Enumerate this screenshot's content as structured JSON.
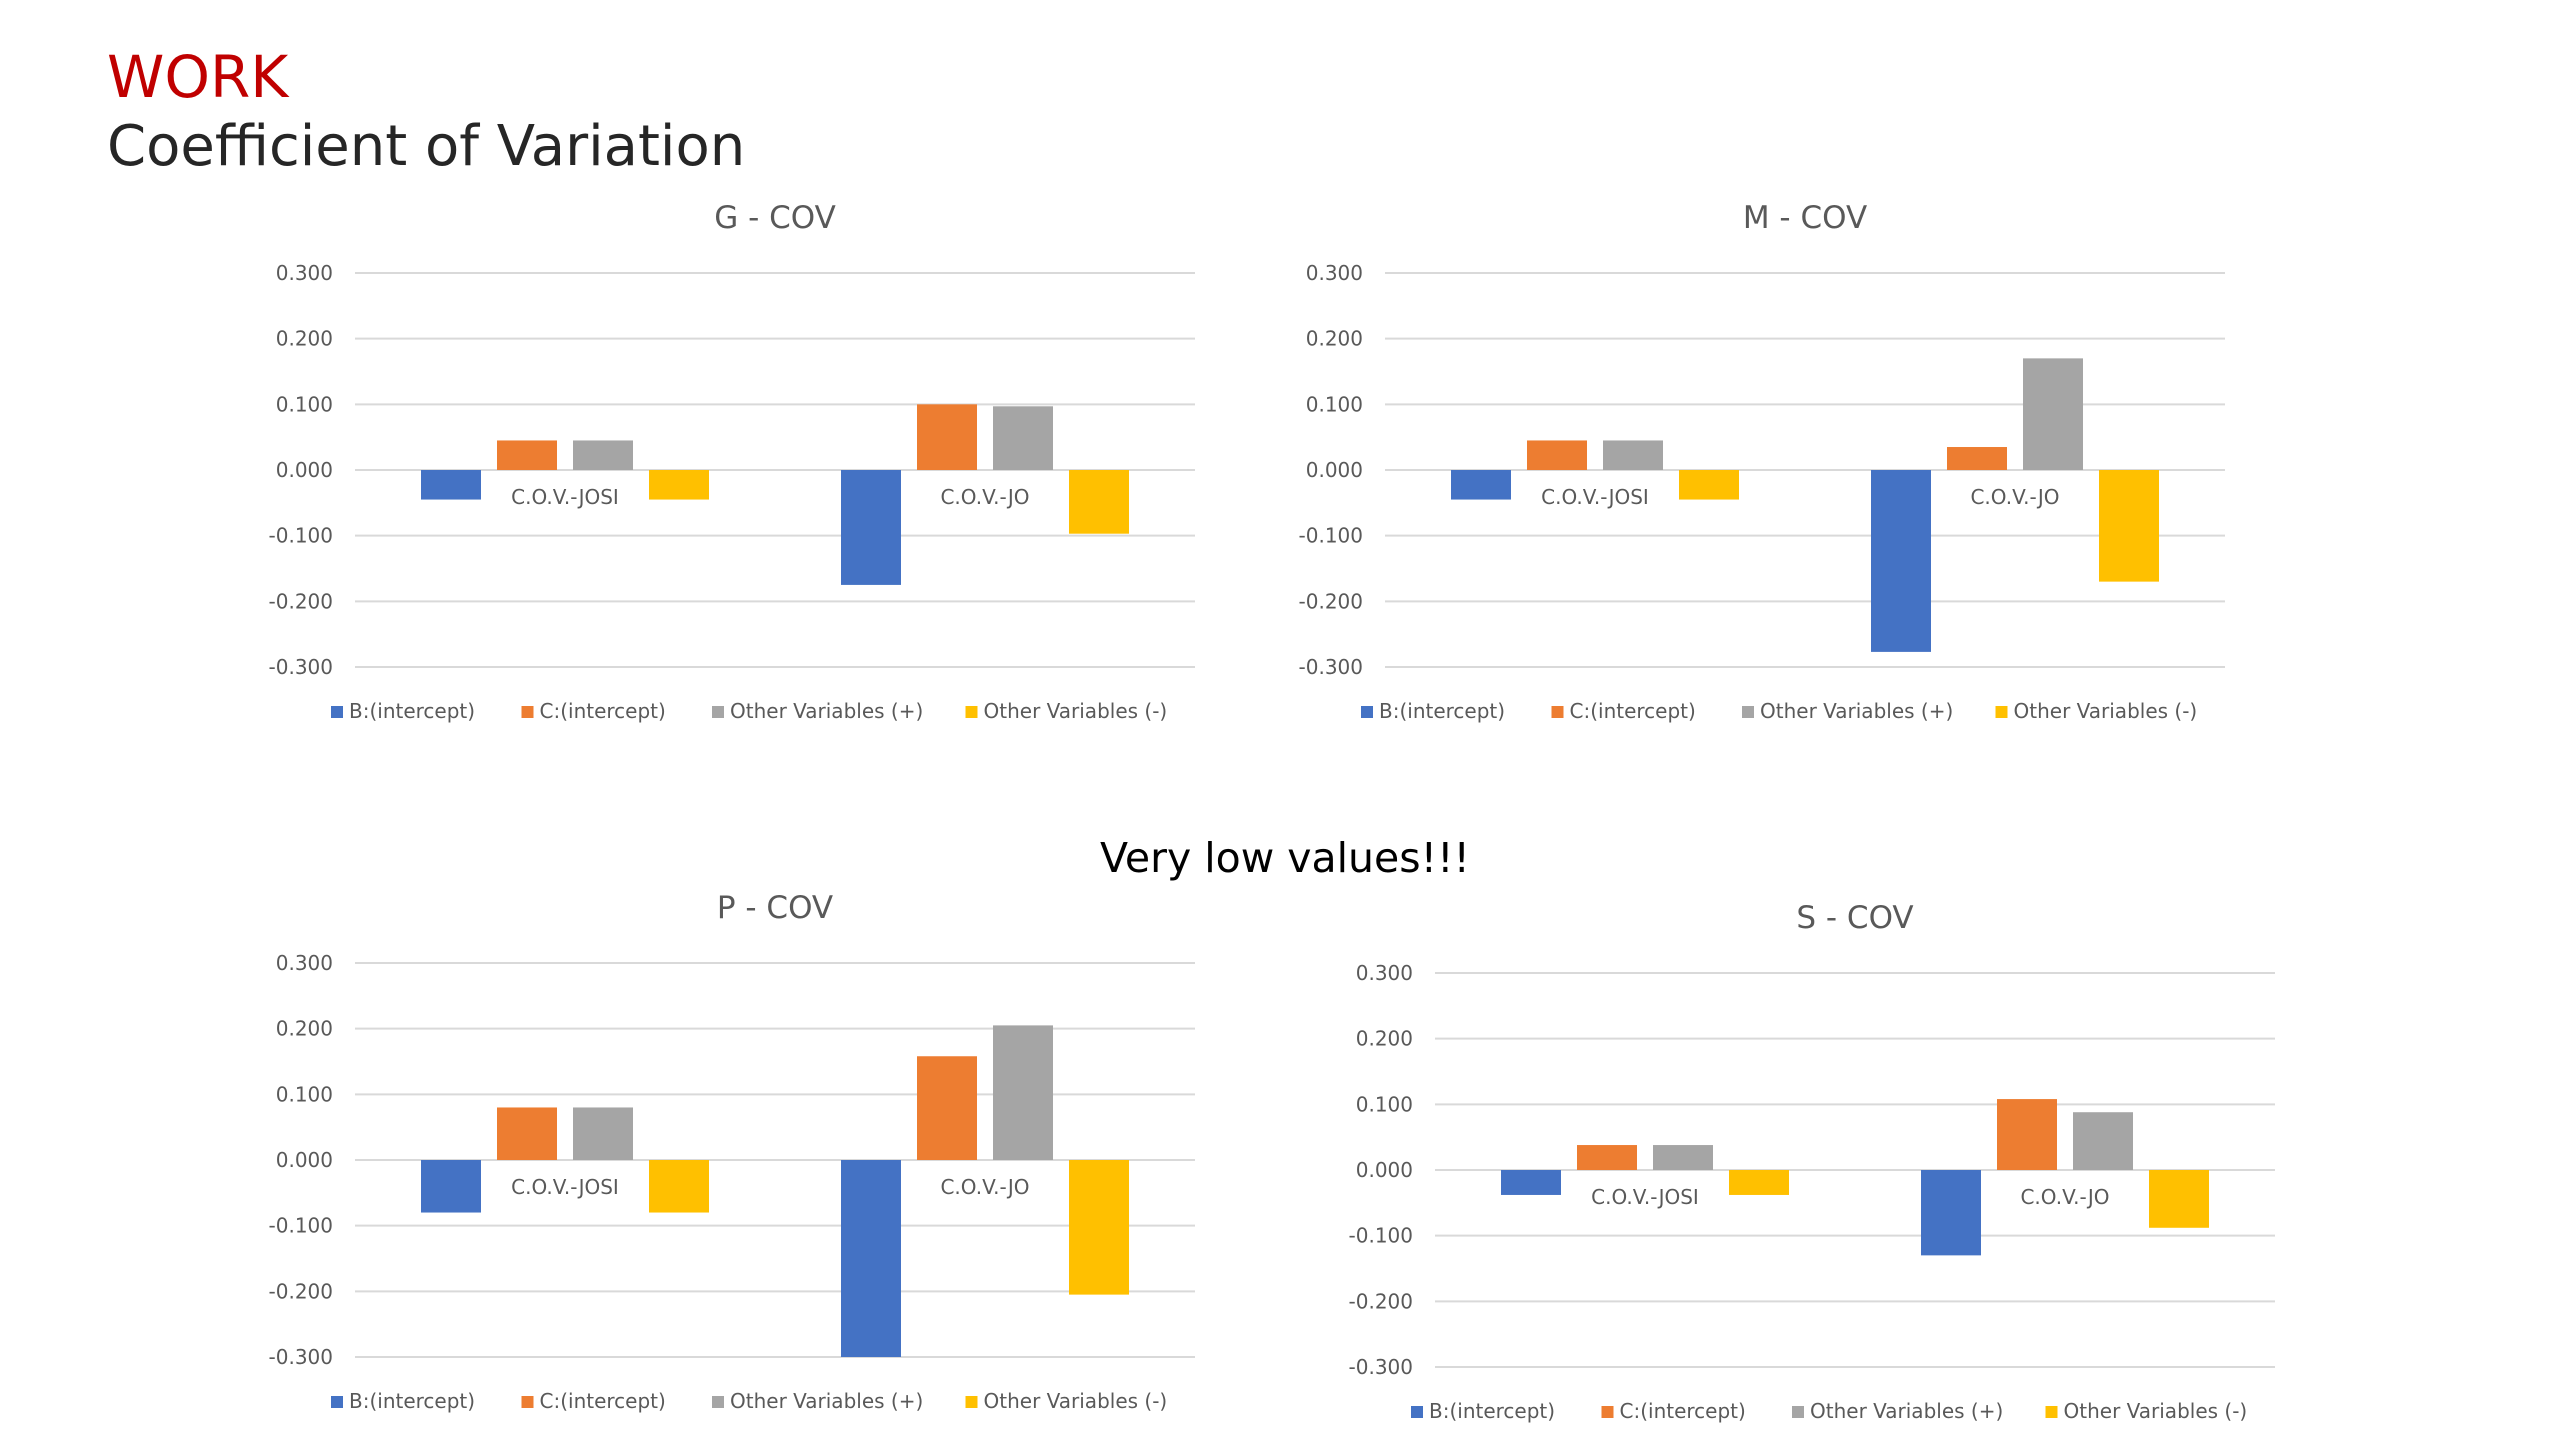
{
  "slide": {
    "title": "WORK",
    "subtitle": "Coefficient of Variation",
    "callout": "Very low values!!!"
  },
  "colors": {
    "title": "#c00000",
    "text": "#595959",
    "gridline": "#d9d9d9",
    "series": [
      "#4472c4",
      "#ed7d31",
      "#a5a5a5",
      "#ffc000"
    ]
  },
  "chart_data": [
    {
      "type": "bar",
      "title": "G - COV",
      "categories": [
        "C.O.V.-JOSI",
        "C.O.V.-JO"
      ],
      "ylim": [
        -0.3,
        0.3
      ],
      "yticks": [
        "0.300",
        "0.200",
        "0.100",
        "0.000",
        "-0.100",
        "-0.200",
        "-0.300"
      ],
      "grid": true,
      "legend": "bottom",
      "series": [
        {
          "name": "B:(intercept)",
          "values": [
            -0.045,
            -0.175
          ]
        },
        {
          "name": "C:(intercept)",
          "values": [
            0.045,
            0.1
          ]
        },
        {
          "name": "Other Variables (+)",
          "values": [
            0.045,
            0.097
          ]
        },
        {
          "name": "Other Variables (-)",
          "values": [
            -0.045,
            -0.097
          ]
        }
      ]
    },
    {
      "type": "bar",
      "title": "M - COV",
      "categories": [
        "C.O.V.-JOSI",
        "C.O.V.-JO"
      ],
      "ylim": [
        -0.3,
        0.3
      ],
      "yticks": [
        "0.300",
        "0.200",
        "0.100",
        "0.000",
        "-0.100",
        "-0.200",
        "-0.300"
      ],
      "grid": true,
      "legend": "bottom",
      "series": [
        {
          "name": "B:(intercept)",
          "values": [
            -0.045,
            -0.277
          ]
        },
        {
          "name": "C:(intercept)",
          "values": [
            0.045,
            0.035
          ]
        },
        {
          "name": "Other Variables (+)",
          "values": [
            0.045,
            0.17
          ]
        },
        {
          "name": "Other Variables (-)",
          "values": [
            -0.045,
            -0.17
          ]
        }
      ]
    },
    {
      "type": "bar",
      "title": "P - COV",
      "categories": [
        "C.O.V.-JOSI",
        "C.O.V.-JO"
      ],
      "ylim": [
        -0.3,
        0.3
      ],
      "yticks": [
        "0.300",
        "0.200",
        "0.100",
        "0.000",
        "-0.100",
        "-0.200",
        "-0.300"
      ],
      "grid": true,
      "legend": "bottom",
      "series": [
        {
          "name": "B:(intercept)",
          "values": [
            -0.08,
            -0.3
          ]
        },
        {
          "name": "C:(intercept)",
          "values": [
            0.08,
            0.158
          ]
        },
        {
          "name": "Other Variables (+)",
          "values": [
            0.08,
            0.205
          ]
        },
        {
          "name": "Other Variables (-)",
          "values": [
            -0.08,
            -0.205
          ]
        }
      ]
    },
    {
      "type": "bar",
      "title": "S - COV",
      "categories": [
        "C.O.V.-JOSI",
        "C.O.V.-JO"
      ],
      "ylim": [
        -0.3,
        0.3
      ],
      "yticks": [
        "0.300",
        "0.200",
        "0.100",
        "0.000",
        "-0.100",
        "-0.200",
        "-0.300"
      ],
      "grid": true,
      "legend": "bottom",
      "series": [
        {
          "name": "B:(intercept)",
          "values": [
            -0.038,
            -0.13
          ]
        },
        {
          "name": "C:(intercept)",
          "values": [
            0.038,
            0.108
          ]
        },
        {
          "name": "Other Variables (+)",
          "values": [
            0.038,
            0.088
          ]
        },
        {
          "name": "Other Variables (-)",
          "values": [
            -0.038,
            -0.088
          ]
        }
      ]
    }
  ]
}
